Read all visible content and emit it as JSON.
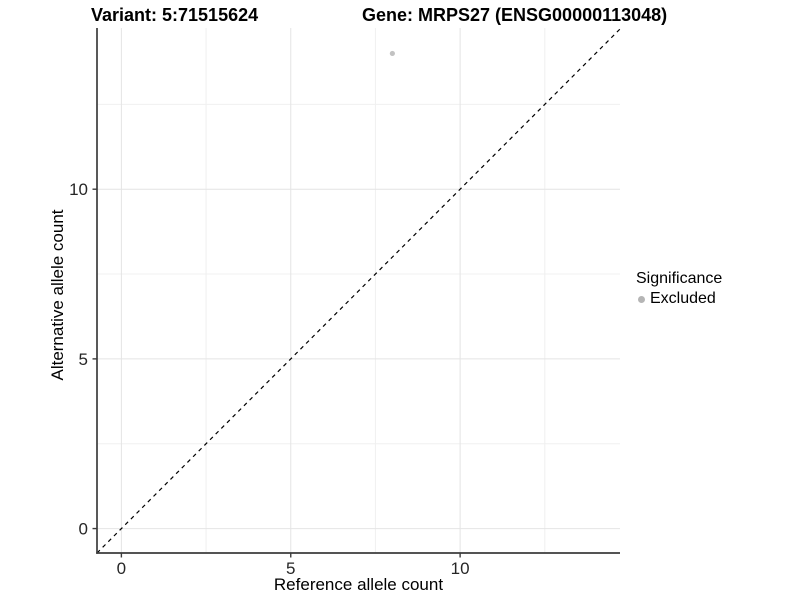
{
  "titles": {
    "variant": "Variant: 5:71515624",
    "gene": "Gene: MRPS27 (ENSG00000113048)"
  },
  "axes": {
    "x_title": "Reference allele count",
    "y_title": "Alternative allele count"
  },
  "legend": {
    "title": "Significance",
    "items": [
      {
        "label": "Excluded",
        "color": "#b5b5b5"
      }
    ]
  },
  "chart_data": {
    "type": "scatter",
    "title": "Variant: 5:71515624  /  Gene: MRPS27 (ENSG00000113048)",
    "xlabel": "Reference allele count",
    "ylabel": "Alternative allele count",
    "xlim": [
      -0.72,
      14.72
    ],
    "ylim": [
      -0.72,
      14.75
    ],
    "x_ticks": [
      0,
      5,
      10
    ],
    "y_ticks": [
      0,
      5,
      10
    ],
    "x_minor_ticks": [
      2.5,
      7.5,
      12.5
    ],
    "y_minor_ticks": [
      2.5,
      7.5,
      12.5
    ],
    "grid": true,
    "legend_position": "right",
    "series": [
      {
        "name": "Excluded",
        "color": "#c2c2c2",
        "point_radius": 2.6,
        "points": [
          {
            "x": 8,
            "y": 14
          }
        ]
      }
    ],
    "identity_line": {
      "style": "dashed",
      "from": -0.72,
      "to": 14.72,
      "color": "#000000"
    },
    "colors": {
      "grid_major": "#e4e4e4",
      "grid_minor": "#f0f0f0",
      "axis_line": "#3c3c3c",
      "tick_label": "#262626"
    }
  }
}
